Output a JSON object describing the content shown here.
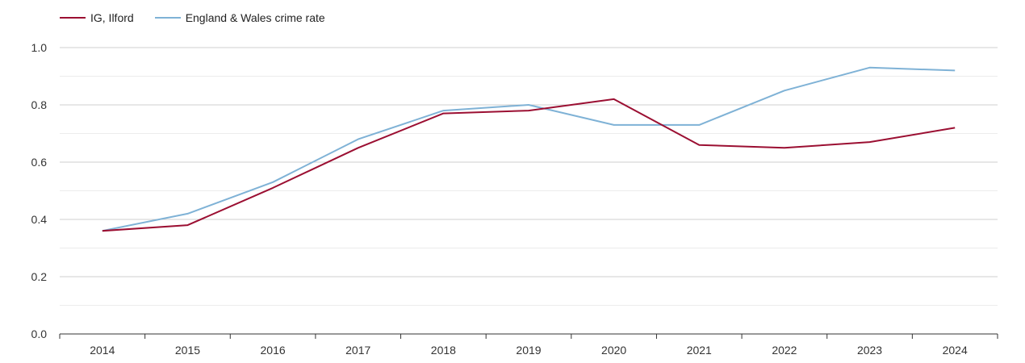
{
  "chart_data": {
    "type": "line",
    "title": "",
    "xlabel": "",
    "ylabel": "",
    "categories": [
      "2014",
      "2015",
      "2016",
      "2017",
      "2018",
      "2019",
      "2020",
      "2021",
      "2022",
      "2023",
      "2024"
    ],
    "ylim": [
      0,
      1.0
    ],
    "yticks": [
      "0.0",
      "0.2",
      "0.4",
      "0.6",
      "0.8",
      "1.0"
    ],
    "yticks_values": [
      0,
      0.2,
      0.4,
      0.6,
      0.8,
      1.0
    ],
    "grid": true,
    "legend_position": "top-left",
    "series": [
      {
        "name": "IG, Ilford",
        "color": "#9b0f32",
        "values": [
          0.36,
          0.38,
          0.51,
          0.65,
          0.77,
          0.78,
          0.82,
          0.66,
          0.65,
          0.67,
          0.72
        ]
      },
      {
        "name": "England & Wales crime rate",
        "color": "#7fb2d6",
        "values": [
          0.36,
          0.42,
          0.53,
          0.68,
          0.78,
          0.8,
          0.73,
          0.73,
          0.85,
          0.93,
          0.92
        ]
      }
    ]
  }
}
